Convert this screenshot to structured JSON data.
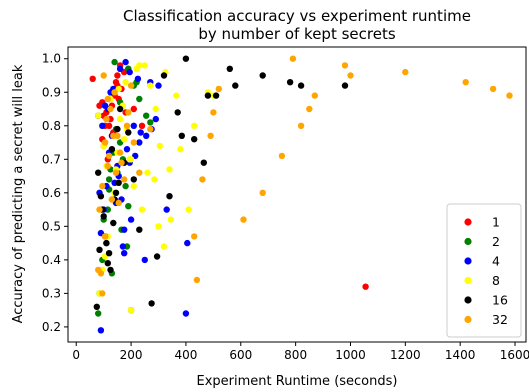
{
  "chart_data": {
    "type": "scatter",
    "title": [
      "Classification accuracy vs experiment runtime",
      "by number of kept secrets"
    ],
    "xlabel": "Experiment Runtime (seconds)",
    "ylabel": "Accuracy of predicting a secret will leak",
    "xlim": [
      -30,
      1640
    ],
    "ylim": [
      0.155,
      1.035
    ],
    "xticks": [
      0,
      200,
      400,
      600,
      800,
      1000,
      1200,
      1400,
      1600
    ],
    "yticks": [
      0.2,
      0.3,
      0.4,
      0.5,
      0.6,
      0.7,
      0.8,
      0.9,
      1.0
    ],
    "ytick_labels": [
      "0.2",
      "0.3",
      "0.4",
      "0.5",
      "0.6",
      "0.7",
      "0.8",
      "0.9",
      "1.0"
    ],
    "grid": false,
    "legend_position": "lower right",
    "series": [
      {
        "name": "1",
        "color": "#ff0000",
        "x": [
          60,
          85,
          95,
          100,
          110,
          120,
          130,
          140,
          150,
          160,
          175,
          190,
          210,
          120,
          145,
          165,
          125,
          135,
          105,
          95,
          155,
          180,
          240,
          1055,
          100,
          115,
          130,
          150
        ],
        "y": [
          0.94,
          0.86,
          0.87,
          0.83,
          0.84,
          0.88,
          0.86,
          0.89,
          0.92,
          0.98,
          0.96,
          0.97,
          0.85,
          0.8,
          0.93,
          0.91,
          0.82,
          0.78,
          0.8,
          0.76,
          0.88,
          0.84,
          0.8,
          0.32,
          0.74,
          0.7,
          0.9,
          0.95
        ]
      },
      {
        "name": "2",
        "color": "#008000",
        "x": [
          80,
          100,
          120,
          140,
          160,
          190,
          210,
          230,
          255,
          270,
          110,
          130,
          150,
          170,
          180,
          200,
          220,
          85,
          95,
          115,
          125,
          135,
          145,
          165,
          185,
          190,
          160,
          140,
          120,
          105
        ],
        "y": [
          0.24,
          0.52,
          0.64,
          0.58,
          0.75,
          0.97,
          0.92,
          0.88,
          0.83,
          0.81,
          0.45,
          0.36,
          0.66,
          0.7,
          0.62,
          0.25,
          0.93,
          0.3,
          0.4,
          0.55,
          0.67,
          0.72,
          0.79,
          0.49,
          0.44,
          0.56,
          0.87,
          0.99,
          0.61,
          0.75
        ]
      },
      {
        "name": "4",
        "color": "#0000ff",
        "x": [
          80,
          90,
          100,
          110,
          120,
          130,
          140,
          150,
          160,
          170,
          180,
          200,
          210,
          230,
          250,
          270,
          290,
          300,
          330,
          400,
          405,
          85,
          95,
          105,
          115,
          125,
          135,
          145,
          155,
          165,
          175,
          195,
          215,
          225,
          235,
          255,
          275,
          175,
          195,
          185,
          90
        ],
        "y": [
          0.83,
          0.19,
          0.55,
          0.62,
          0.72,
          0.77,
          0.63,
          0.68,
          0.97,
          0.44,
          0.99,
          0.52,
          0.8,
          0.75,
          0.4,
          0.93,
          0.82,
          0.92,
          0.55,
          0.24,
          0.45,
          0.6,
          0.8,
          0.86,
          0.85,
          0.9,
          0.91,
          0.57,
          0.65,
          0.58,
          0.42,
          0.96,
          0.71,
          0.94,
          0.78,
          0.77,
          0.79,
          0.49,
          0.69,
          0.73,
          0.48
        ]
      },
      {
        "name": "8",
        "color": "#ffff00",
        "x": [
          80,
          100,
          110,
          125,
          140,
          155,
          175,
          200,
          220,
          230,
          250,
          270,
          285,
          305,
          325,
          345,
          365,
          380,
          410,
          430,
          480,
          500,
          85,
          95,
          105,
          115,
          130,
          145,
          160,
          170,
          185,
          195,
          210,
          240,
          260,
          290,
          320,
          300,
          340,
          200,
          180,
          150
        ],
        "y": [
          0.83,
          0.74,
          0.68,
          0.88,
          0.6,
          0.91,
          0.76,
          0.7,
          0.97,
          0.98,
          0.98,
          0.92,
          0.64,
          0.74,
          0.96,
          0.52,
          0.89,
          0.73,
          0.55,
          0.8,
          0.9,
          0.89,
          0.3,
          0.37,
          0.41,
          0.47,
          0.58,
          0.67,
          0.82,
          0.86,
          0.79,
          0.7,
          0.62,
          0.55,
          0.66,
          0.85,
          0.44,
          0.5,
          0.67,
          0.25,
          0.93,
          0.72
        ]
      },
      {
        "name": "16",
        "color": "#000000",
        "x": [
          75,
          85,
          95,
          105,
          115,
          125,
          135,
          145,
          160,
          175,
          190,
          210,
          230,
          275,
          295,
          320,
          340,
          370,
          385,
          400,
          430,
          465,
          480,
          510,
          560,
          580,
          680,
          780,
          820,
          980,
          80,
          90,
          100,
          110,
          120,
          130,
          140,
          150,
          155
        ],
        "y": [
          0.26,
          0.43,
          0.55,
          0.47,
          0.39,
          0.37,
          0.51,
          0.6,
          0.85,
          0.69,
          0.78,
          0.64,
          0.49,
          0.27,
          0.41,
          0.95,
          0.59,
          0.84,
          0.77,
          1.0,
          0.76,
          0.69,
          0.89,
          0.89,
          0.97,
          0.92,
          0.95,
          0.93,
          0.92,
          0.92,
          0.66,
          0.59,
          0.53,
          0.45,
          0.42,
          0.73,
          0.58,
          0.79,
          0.63
        ]
      },
      {
        "name": "32",
        "color": "#ffa500",
        "x": [
          80,
          90,
          100,
          110,
          120,
          130,
          140,
          150,
          160,
          175,
          190,
          210,
          230,
          270,
          430,
          440,
          460,
          490,
          500,
          520,
          610,
          680,
          750,
          790,
          820,
          850,
          870,
          980,
          1000,
          1200,
          1420,
          1520,
          1580,
          85,
          95,
          105,
          115,
          125,
          135,
          145,
          155,
          165,
          185,
          200,
          95,
          105,
          115
        ],
        "y": [
          0.37,
          0.36,
          0.95,
          0.82,
          0.71,
          0.58,
          0.9,
          0.77,
          0.72,
          0.64,
          0.84,
          0.75,
          0.66,
          0.79,
          0.47,
          0.34,
          0.64,
          0.77,
          0.84,
          0.91,
          0.52,
          0.6,
          0.71,
          1.0,
          0.8,
          0.85,
          0.89,
          0.98,
          0.95,
          0.96,
          0.93,
          0.91,
          0.89,
          0.55,
          0.62,
          0.75,
          0.88,
          0.85,
          0.77,
          0.66,
          0.57,
          0.69,
          0.8,
          0.92,
          0.3,
          0.47,
          0.68
        ]
      }
    ]
  }
}
